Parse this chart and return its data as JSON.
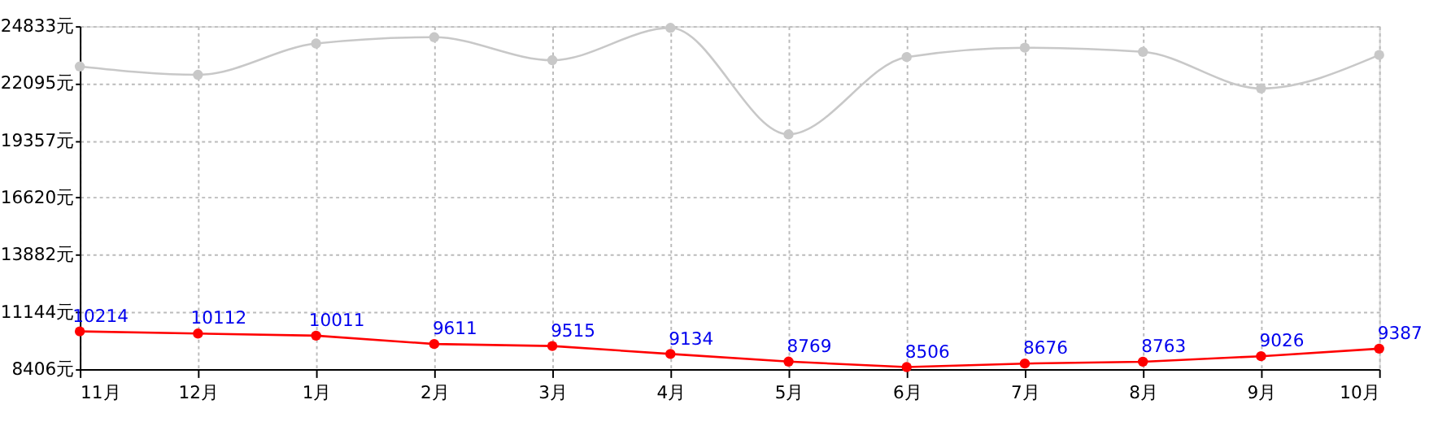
{
  "chart_data": {
    "type": "line",
    "categories": [
      "11月",
      "12月",
      "1月",
      "2月",
      "3月",
      "4月",
      "5月",
      "6月",
      "7月",
      "8月",
      "9月",
      "10月"
    ],
    "series": [
      {
        "color": "#c8c8c8",
        "values": [
          22900,
          22500,
          24000,
          24300,
          23200,
          24750,
          19650,
          23350,
          23800,
          23600,
          21850,
          23450
        ]
      },
      {
        "color": "#ff0000",
        "values": [
          10214,
          10112,
          10011,
          9611,
          9515,
          9134,
          8769,
          8506,
          8676,
          8763,
          9026,
          9387
        ],
        "value_labels": [
          "10214",
          "10112",
          "10011",
          "9611",
          "9515",
          "9134",
          "8769",
          "8506",
          "8676",
          "8763",
          "9026",
          "9387"
        ]
      }
    ],
    "ylim": [
      8406,
      24833
    ],
    "yticks": [
      {
        "value": 8406,
        "label": "8406元"
      },
      {
        "value": 11144,
        "label": "11144元"
      },
      {
        "value": 13882,
        "label": "13882元"
      },
      {
        "value": 16620,
        "label": "16620元"
      },
      {
        "value": 19357,
        "label": "19357元"
      },
      {
        "value": 22095,
        "label": "22095元"
      },
      {
        "value": 24833,
        "label": "24833元"
      }
    ],
    "grid": true,
    "marker": "circle"
  }
}
